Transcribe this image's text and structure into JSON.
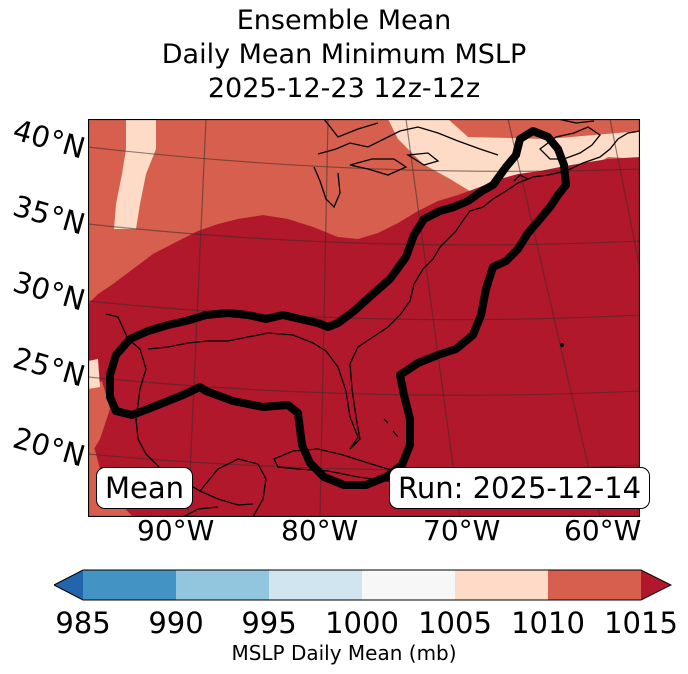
{
  "title": {
    "line1": "Ensemble Mean",
    "line2": "Daily Mean Minimum MSLP",
    "line3": "2025-12-23 12z-12z"
  },
  "map": {
    "region": "Gulf of Mexico and US East Coast",
    "lat_labels": [
      "40°N",
      "35°N",
      "30°N",
      "25°N",
      "20°N"
    ],
    "lon_labels": [
      "90°W",
      "80°W",
      "70°W",
      "60°W"
    ],
    "contour_color": "#000000",
    "fill_colors": {
      "1005-1010": "#fddbc7",
      "1010-1015": "#d6604d",
      "above-1015": "#b2182b"
    }
  },
  "badges": {
    "left": "Mean",
    "right": "Run: 2025-12-14"
  },
  "colorbar": {
    "label": "MSLP Daily Mean (mb)",
    "ticks": [
      "985",
      "990",
      "995",
      "1000",
      "1005",
      "1010",
      "1015"
    ],
    "colors": [
      "#2166ac",
      "#4393c3",
      "#92c5de",
      "#d1e5f0",
      "#f7f7f7",
      "#fddbc7",
      "#d6604d",
      "#b2182b"
    ]
  }
}
